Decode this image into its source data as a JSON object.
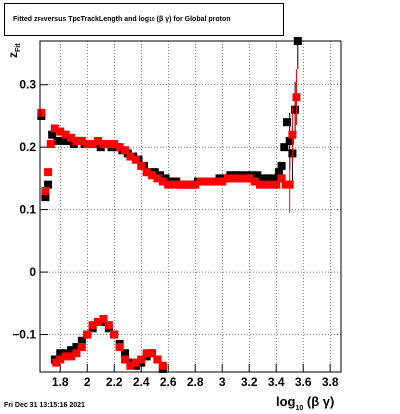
{
  "title": {
    "p1": "Fitted ",
    "z": "z",
    "z_sub": "Fit",
    "p2": " versus TpcTrackLength and log",
    "log_sub": "10",
    "p3": "(β  γ) for Global proton"
  },
  "footer": "Fri Dec 31 13:15:16 2021",
  "colors": {
    "series1": "#000000",
    "series2": "#ff0000",
    "grid": "#000000"
  },
  "chart_data": {
    "type": "scatter",
    "title": "Fitted z_Fit versus TpcTrackLength and log_10(β γ) for Global proton",
    "xlabel": "log10(β γ)",
    "ylabel": "zFit",
    "xlim": [
      1.65,
      3.88
    ],
    "ylim": [
      -0.16,
      0.37
    ],
    "grid": true,
    "xticks": [
      1.8,
      2,
      2.2,
      2.4,
      2.6,
      2.8,
      3,
      3.2,
      3.4,
      3.6,
      3.8
    ],
    "xtick_labels": [
      "1.8",
      "2",
      "2.2",
      "2.4",
      "2.6",
      "2.8",
      "3",
      "3.2",
      "3.4",
      "3.6",
      "3.8"
    ],
    "yticks": [
      -0.1,
      0,
      0.1,
      0.2,
      0.3
    ],
    "ytick_labels": [
      "−0.1",
      "0",
      "0.1",
      "0.2",
      "0.3"
    ],
    "series": [
      {
        "color": "#000000",
        "points": [
          [
            1.66,
            0.25
          ],
          [
            1.69,
            0.12
          ],
          [
            1.71,
            0.14
          ],
          [
            1.74,
            0.22
          ],
          [
            1.78,
            0.21
          ],
          [
            1.82,
            0.21
          ],
          [
            1.86,
            0.21
          ],
          [
            1.9,
            0.205
          ],
          [
            1.94,
            0.21
          ],
          [
            1.98,
            0.205
          ],
          [
            2.02,
            0.205
          ],
          [
            2.06,
            0.205
          ],
          [
            2.1,
            0.2
          ],
          [
            2.14,
            0.205
          ],
          [
            2.18,
            0.2
          ],
          [
            2.22,
            0.2
          ],
          [
            2.26,
            0.195
          ],
          [
            2.3,
            0.19
          ],
          [
            2.34,
            0.185
          ],
          [
            2.38,
            0.18
          ],
          [
            2.42,
            0.17
          ],
          [
            2.46,
            0.16
          ],
          [
            2.5,
            0.16
          ],
          [
            2.54,
            0.155
          ],
          [
            2.58,
            0.15
          ],
          [
            2.62,
            0.145
          ],
          [
            2.66,
            0.145
          ],
          [
            2.7,
            0.14
          ],
          [
            2.74,
            0.14
          ],
          [
            2.78,
            0.14
          ],
          [
            2.82,
            0.145
          ],
          [
            2.86,
            0.145
          ],
          [
            2.9,
            0.145
          ],
          [
            2.94,
            0.145
          ],
          [
            2.98,
            0.15
          ],
          [
            3.02,
            0.15
          ],
          [
            3.06,
            0.155
          ],
          [
            3.1,
            0.155
          ],
          [
            3.14,
            0.155
          ],
          [
            3.18,
            0.155
          ],
          [
            3.22,
            0.155
          ],
          [
            3.26,
            0.155
          ],
          [
            3.3,
            0.15
          ],
          [
            3.34,
            0.15
          ],
          [
            3.38,
            0.15
          ],
          [
            3.42,
            0.16
          ],
          [
            3.44,
            0.17
          ],
          [
            3.46,
            0.2
          ],
          [
            3.48,
            0.24
          ],
          [
            3.5,
            0.21
          ],
          [
            3.52,
            0.19
          ],
          [
            3.54,
            0.26
          ],
          [
            3.56,
            0.37
          ],
          [
            1.76,
            -0.14
          ],
          [
            1.8,
            -0.13
          ],
          [
            1.84,
            -0.13
          ],
          [
            1.88,
            -0.125
          ],
          [
            1.92,
            -0.12
          ],
          [
            1.96,
            -0.11
          ],
          [
            2.0,
            -0.1
          ],
          [
            2.04,
            -0.09
          ],
          [
            2.08,
            -0.08
          ],
          [
            2.12,
            -0.08
          ],
          [
            2.16,
            -0.09
          ],
          [
            2.2,
            -0.1
          ],
          [
            2.24,
            -0.115
          ],
          [
            2.28,
            -0.13
          ],
          [
            2.32,
            -0.145
          ],
          [
            2.36,
            -0.15
          ],
          [
            2.4,
            -0.145
          ],
          [
            2.44,
            -0.135
          ],
          [
            2.48,
            -0.13
          ],
          [
            2.52,
            -0.14
          ],
          [
            2.56,
            -0.155
          ]
        ]
      },
      {
        "color": "#ff0000",
        "points": [
          [
            1.66,
            0.255
          ],
          [
            1.69,
            0.13
          ],
          [
            1.71,
            0.16
          ],
          [
            1.73,
            0.205
          ],
          [
            1.76,
            0.23
          ],
          [
            1.8,
            0.225
          ],
          [
            1.84,
            0.22
          ],
          [
            1.88,
            0.215
          ],
          [
            1.92,
            0.21
          ],
          [
            1.96,
            0.21
          ],
          [
            2.0,
            0.205
          ],
          [
            2.04,
            0.205
          ],
          [
            2.08,
            0.21
          ],
          [
            2.12,
            0.205
          ],
          [
            2.16,
            0.205
          ],
          [
            2.2,
            0.205
          ],
          [
            2.24,
            0.2
          ],
          [
            2.28,
            0.195
          ],
          [
            2.32,
            0.185
          ],
          [
            2.36,
            0.18
          ],
          [
            2.4,
            0.17
          ],
          [
            2.44,
            0.16
          ],
          [
            2.48,
            0.155
          ],
          [
            2.52,
            0.15
          ],
          [
            2.56,
            0.145
          ],
          [
            2.6,
            0.14
          ],
          [
            2.64,
            0.14
          ],
          [
            2.68,
            0.14
          ],
          [
            2.72,
            0.14
          ],
          [
            2.76,
            0.14
          ],
          [
            2.8,
            0.14
          ],
          [
            2.84,
            0.145
          ],
          [
            2.88,
            0.145
          ],
          [
            2.92,
            0.145
          ],
          [
            2.96,
            0.145
          ],
          [
            3.0,
            0.145
          ],
          [
            3.04,
            0.15
          ],
          [
            3.08,
            0.15
          ],
          [
            3.12,
            0.15
          ],
          [
            3.16,
            0.15
          ],
          [
            3.2,
            0.15
          ],
          [
            3.24,
            0.145
          ],
          [
            3.28,
            0.14
          ],
          [
            3.32,
            0.14
          ],
          [
            3.36,
            0.14
          ],
          [
            3.4,
            0.14
          ],
          [
            3.44,
            0.15
          ],
          [
            3.47,
            0.14
          ],
          [
            3.5,
            0.14
          ],
          [
            3.52,
            0.22
          ],
          [
            3.55,
            0.28
          ],
          [
            1.77,
            -0.145
          ],
          [
            1.8,
            -0.14
          ],
          [
            1.84,
            -0.135
          ],
          [
            1.88,
            -0.135
          ],
          [
            1.92,
            -0.13
          ],
          [
            1.96,
            -0.12
          ],
          [
            2.0,
            -0.1
          ],
          [
            2.04,
            -0.085
          ],
          [
            2.08,
            -0.08
          ],
          [
            2.12,
            -0.075
          ],
          [
            2.16,
            -0.085
          ],
          [
            2.2,
            -0.1
          ],
          [
            2.24,
            -0.12
          ],
          [
            2.28,
            -0.14
          ],
          [
            2.32,
            -0.15
          ],
          [
            2.36,
            -0.145
          ],
          [
            2.4,
            -0.14
          ],
          [
            2.44,
            -0.13
          ],
          [
            2.48,
            -0.13
          ],
          [
            2.52,
            -0.14
          ],
          [
            2.56,
            -0.15
          ]
        ]
      }
    ]
  }
}
